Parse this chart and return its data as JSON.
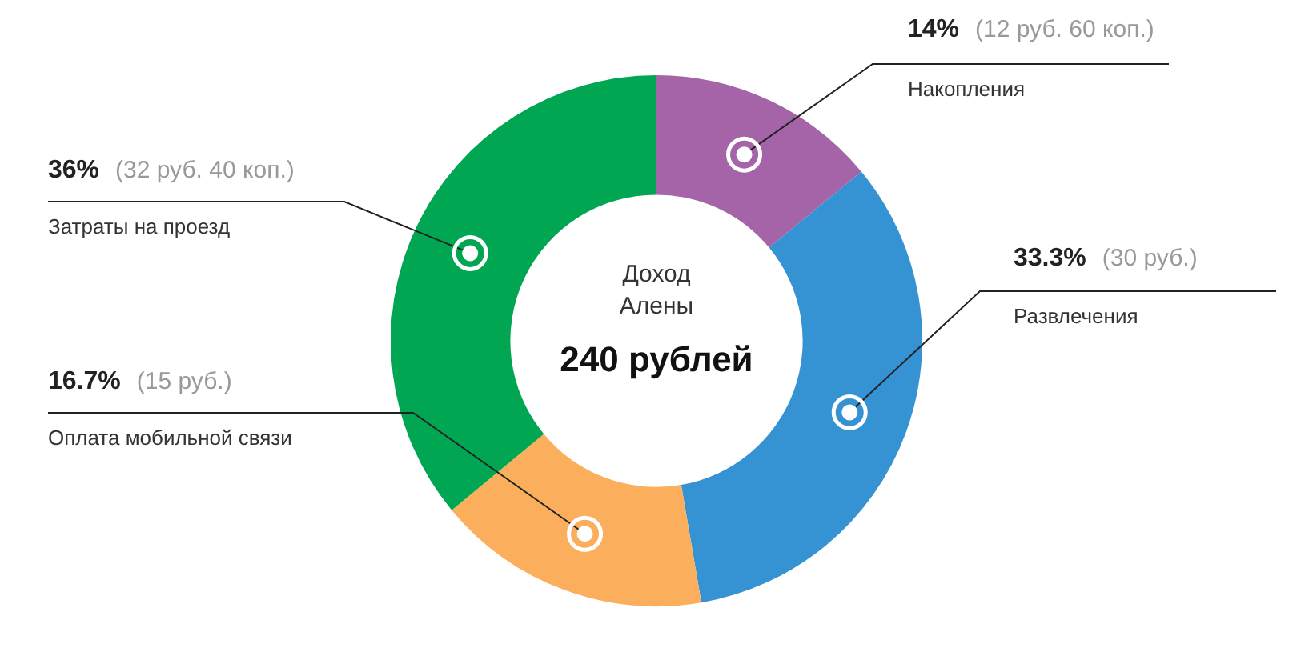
{
  "chart_data": {
    "type": "donut",
    "title": "Доход Алены",
    "subtitle": "240 рублей",
    "categories": [
      "Накопления",
      "Развлечения",
      "Оплата мобильной связи",
      "Затраты на проезд"
    ],
    "values": [
      14,
      33.3,
      16.7,
      36
    ],
    "colors": [
      "#a564a8",
      "#3592d3",
      "#fbae5c",
      "#00a651"
    ],
    "value_labels": [
      "14%",
      "33.3%",
      "16.7%",
      "36%"
    ],
    "annotations": [
      "(12 руб. 60 коп.)",
      "(30 руб.)",
      "(15 руб.)",
      "(32 руб. 40 коп.)"
    ]
  }
}
